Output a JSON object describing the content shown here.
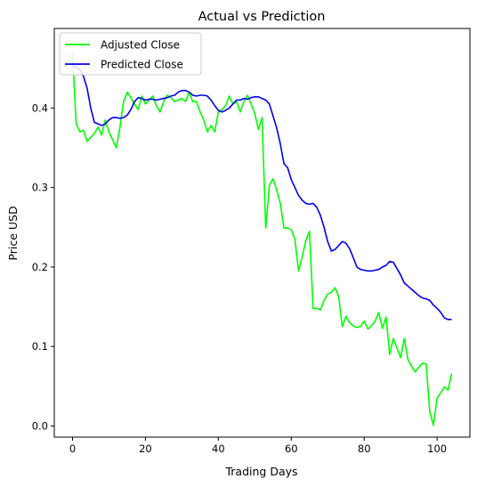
{
  "chart_data": {
    "type": "line",
    "title": "Actual vs Prediction",
    "xlabel": "Trading Days",
    "ylabel": "Price USD",
    "xlim": [
      -5,
      109
    ],
    "ylim": [
      -0.014,
      0.5
    ],
    "xticks": [
      0,
      20,
      40,
      60,
      80,
      100
    ],
    "yticks": [
      0.0,
      0.1,
      0.2,
      0.3,
      0.4
    ],
    "xtick_labels": [
      "0",
      "20",
      "40",
      "60",
      "80",
      "100"
    ],
    "ytick_labels": [
      "0.0",
      "0.1",
      "0.2",
      "0.3",
      "0.4"
    ],
    "grid": false,
    "legend_position": "top-left",
    "series": [
      {
        "name": "Adjusted Close",
        "color": "#00ff00",
        "x": [
          0,
          1,
          2,
          3,
          4,
          5,
          6,
          7,
          8,
          9,
          10,
          11,
          12,
          13,
          14,
          15,
          16,
          17,
          18,
          19,
          20,
          21,
          22,
          23,
          24,
          25,
          26,
          27,
          28,
          29,
          30,
          31,
          32,
          33,
          34,
          35,
          36,
          37,
          38,
          39,
          40,
          41,
          42,
          43,
          44,
          45,
          46,
          47,
          48,
          49,
          50,
          51,
          52,
          53,
          54,
          55,
          56,
          57,
          58,
          59,
          60,
          61,
          62,
          63,
          64,
          65,
          66,
          67,
          68,
          69,
          70,
          71,
          72,
          73,
          74,
          75,
          76,
          77,
          78,
          79,
          80,
          81,
          82,
          83,
          84,
          85,
          86,
          87,
          88,
          89,
          90,
          91,
          92,
          93,
          94,
          95,
          96,
          97,
          98,
          99,
          100,
          101,
          102,
          103,
          104
        ],
        "y": [
          0.47,
          0.38,
          0.37,
          0.372,
          0.358,
          0.363,
          0.368,
          0.376,
          0.366,
          0.385,
          0.37,
          0.36,
          0.35,
          0.375,
          0.408,
          0.42,
          0.413,
          0.405,
          0.398,
          0.415,
          0.405,
          0.41,
          0.415,
          0.403,
          0.395,
          0.408,
          0.416,
          0.413,
          0.408,
          0.41,
          0.412,
          0.408,
          0.42,
          0.408,
          0.408,
          0.395,
          0.385,
          0.37,
          0.378,
          0.37,
          0.395,
          0.398,
          0.403,
          0.415,
          0.405,
          0.408,
          0.395,
          0.408,
          0.416,
          0.405,
          0.393,
          0.373,
          0.388,
          0.249,
          0.303,
          0.311,
          0.297,
          0.28,
          0.249,
          0.249,
          0.247,
          0.235,
          0.195,
          0.213,
          0.233,
          0.245,
          0.148,
          0.148,
          0.146,
          0.158,
          0.166,
          0.168,
          0.174,
          0.163,
          0.125,
          0.138,
          0.13,
          0.126,
          0.124,
          0.125,
          0.132,
          0.122,
          0.126,
          0.132,
          0.143,
          0.123,
          0.137,
          0.09,
          0.11,
          0.098,
          0.086,
          0.11,
          0.084,
          0.075,
          0.068,
          0.074,
          0.079,
          0.078,
          0.018,
          0.001,
          0.035,
          0.042,
          0.049,
          0.045,
          0.066
        ]
      },
      {
        "name": "Predicted Close",
        "color": "#0000ee",
        "x": [
          0,
          1,
          2,
          3,
          4,
          5,
          6,
          7,
          8,
          9,
          10,
          11,
          12,
          13,
          14,
          15,
          16,
          17,
          18,
          19,
          20,
          21,
          22,
          23,
          24,
          25,
          26,
          27,
          28,
          29,
          30,
          31,
          32,
          33,
          34,
          35,
          36,
          37,
          38,
          39,
          40,
          41,
          42,
          43,
          44,
          45,
          46,
          47,
          48,
          49,
          50,
          51,
          52,
          53,
          54,
          55,
          56,
          57,
          58,
          59,
          60,
          61,
          62,
          63,
          64,
          65,
          66,
          67,
          68,
          69,
          70,
          71,
          72,
          73,
          74,
          75,
          76,
          77,
          78,
          79,
          80,
          81,
          82,
          83,
          84,
          85,
          86,
          87,
          88,
          89,
          90,
          91,
          92,
          93,
          94,
          95,
          96,
          97,
          98,
          99,
          100,
          101,
          102,
          103,
          104
        ],
        "y": [
          0.452,
          0.452,
          0.448,
          0.44,
          0.425,
          0.4,
          0.382,
          0.38,
          0.378,
          0.38,
          0.385,
          0.388,
          0.388,
          0.387,
          0.388,
          0.391,
          0.398,
          0.408,
          0.413,
          0.412,
          0.41,
          0.411,
          0.411,
          0.41,
          0.411,
          0.412,
          0.413,
          0.415,
          0.416,
          0.42,
          0.422,
          0.422,
          0.42,
          0.416,
          0.415,
          0.416,
          0.416,
          0.415,
          0.41,
          0.403,
          0.397,
          0.395,
          0.397,
          0.4,
          0.405,
          0.41,
          0.41,
          0.412,
          0.411,
          0.413,
          0.414,
          0.414,
          0.412,
          0.41,
          0.405,
          0.39,
          0.375,
          0.355,
          0.33,
          0.325,
          0.31,
          0.3,
          0.29,
          0.284,
          0.28,
          0.279,
          0.28,
          0.275,
          0.265,
          0.25,
          0.232,
          0.22,
          0.222,
          0.227,
          0.232,
          0.23,
          0.223,
          0.212,
          0.2,
          0.197,
          0.196,
          0.195,
          0.195,
          0.196,
          0.197,
          0.2,
          0.202,
          0.207,
          0.206,
          0.198,
          0.19,
          0.18,
          0.176,
          0.172,
          0.168,
          0.164,
          0.161,
          0.16,
          0.158,
          0.152,
          0.148,
          0.143,
          0.136,
          0.134,
          0.134
        ]
      }
    ]
  }
}
